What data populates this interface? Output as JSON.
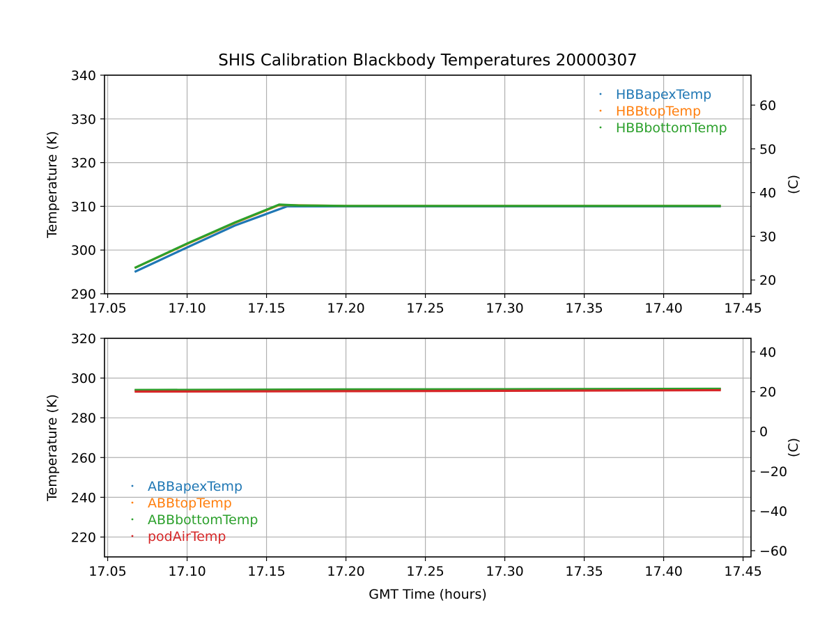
{
  "chart_data": {
    "title": "SHIS Calibration Blackbody Temperatures 20000307",
    "xlabel": "GMT Time (hours)",
    "panels": [
      {
        "type": "scatter",
        "ylabel": "Temperature (K)",
        "y2label": "(C)",
        "xlim": [
          17.048,
          17.455
        ],
        "ylim": [
          290,
          340
        ],
        "y2lim": [
          16.85,
          66.85
        ],
        "xticks": [
          "17.05",
          "17.10",
          "17.15",
          "17.20",
          "17.25",
          "17.30",
          "17.35",
          "17.40",
          "17.45"
        ],
        "yticks": [
          "290",
          "300",
          "310",
          "320",
          "330",
          "340"
        ],
        "y2ticks": [
          "20",
          "30",
          "40",
          "50",
          "60"
        ],
        "grid": true,
        "legend_position": "top-right",
        "series": [
          {
            "name": "HBBapexTemp",
            "color": "#1f77b4",
            "points": [
              [
                17.067,
                295.0
              ],
              [
                17.1,
                300.6
              ],
              [
                17.13,
                305.6
              ],
              [
                17.163,
                310.0
              ],
              [
                17.2,
                310.0
              ],
              [
                17.3,
                310.0
              ],
              [
                17.436,
                310.0
              ]
            ]
          },
          {
            "name": "HBBtopTemp",
            "color": "#ff7f0e",
            "points": [
              [
                17.067,
                295.9
              ],
              [
                17.1,
                301.4
              ],
              [
                17.13,
                306.2
              ],
              [
                17.158,
                310.3
              ],
              [
                17.2,
                310.1
              ],
              [
                17.3,
                310.1
              ],
              [
                17.436,
                310.1
              ]
            ]
          },
          {
            "name": "HBBbottomTemp",
            "color": "#2ca02c",
            "points": [
              [
                17.067,
                295.9
              ],
              [
                17.1,
                301.5
              ],
              [
                17.13,
                306.3
              ],
              [
                17.158,
                310.4
              ],
              [
                17.17,
                310.2
              ],
              [
                17.2,
                310.1
              ],
              [
                17.3,
                310.1
              ],
              [
                17.436,
                310.1
              ]
            ]
          }
        ]
      },
      {
        "type": "scatter",
        "ylabel": "Temperature (K)",
        "y2label": "(C)",
        "xlim": [
          17.048,
          17.455
        ],
        "ylim": [
          210,
          320
        ],
        "y2lim": [
          -63.15,
          46.85
        ],
        "xticks": [
          "17.05",
          "17.10",
          "17.15",
          "17.20",
          "17.25",
          "17.30",
          "17.35",
          "17.40",
          "17.45"
        ],
        "yticks": [
          "220",
          "240",
          "260",
          "280",
          "300",
          "320"
        ],
        "y2ticks": [
          "−60",
          "−40",
          "−20",
          "0",
          "20",
          "40"
        ],
        "grid": true,
        "legend_position": "lower-left",
        "series": [
          {
            "name": "ABBapexTemp",
            "color": "#1f77b4",
            "points": [
              [
                17.067,
                293.9
              ],
              [
                17.2,
                294.1
              ],
              [
                17.3,
                294.2
              ],
              [
                17.436,
                294.5
              ]
            ]
          },
          {
            "name": "ABBtopTemp",
            "color": "#ff7f0e",
            "points": [
              [
                17.067,
                293.9
              ],
              [
                17.2,
                294.1
              ],
              [
                17.3,
                294.2
              ],
              [
                17.436,
                294.5
              ]
            ]
          },
          {
            "name": "ABBbottomTemp",
            "color": "#2ca02c",
            "points": [
              [
                17.067,
                294.0
              ],
              [
                17.2,
                294.3
              ],
              [
                17.3,
                294.4
              ],
              [
                17.436,
                294.6
              ]
            ]
          },
          {
            "name": "podAirTemp",
            "color": "#d62728",
            "points": [
              [
                17.067,
                293.2
              ],
              [
                17.2,
                293.4
              ],
              [
                17.3,
                293.6
              ],
              [
                17.436,
                293.9
              ]
            ]
          }
        ]
      }
    ]
  }
}
